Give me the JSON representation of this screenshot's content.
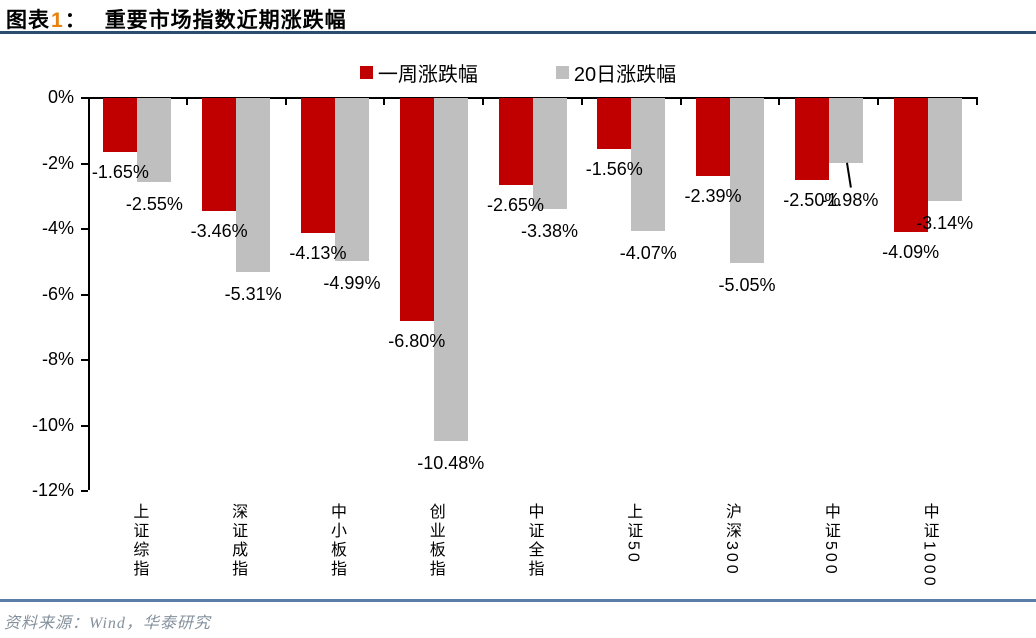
{
  "header": {
    "prefix": "图表",
    "number": "1",
    "colon": "：",
    "title": "重要市场指数近期涨跌幅"
  },
  "legend": [
    {
      "label": "一周涨跌幅",
      "color": "#C00000"
    },
    {
      "label": "20日涨跌幅",
      "color": "#BFBFBF"
    }
  ],
  "footer": {
    "source": "资料来源：Wind，华泰研究"
  },
  "chart_data": {
    "type": "bar",
    "title": "重要市场指数近期涨跌幅",
    "categories": [
      "上证综指",
      "深证成指",
      "中小板指",
      "创业板指",
      "中证全指",
      "上证50",
      "沪深300",
      "中证500",
      "中证1000"
    ],
    "series": [
      {
        "name": "一周涨跌幅",
        "color": "#C00000",
        "values": [
          -1.65,
          -3.46,
          -4.13,
          -6.8,
          -2.65,
          -1.56,
          -2.39,
          -2.5,
          -4.09
        ],
        "labels": [
          "-1.65%",
          "-3.46%",
          "-4.13%",
          "-6.80%",
          "-2.65%",
          "-1.56%",
          "-2.39%",
          "-2.50%",
          "-4.09%"
        ]
      },
      {
        "name": "20日涨跌幅",
        "color": "#BFBFBF",
        "values": [
          -2.55,
          -5.31,
          -4.99,
          -10.48,
          -3.38,
          -4.07,
          -5.05,
          -1.98,
          -3.14
        ],
        "labels": [
          "-2.55%",
          "-5.31%",
          "-4.99%",
          "-10.48%",
          "-3.38%",
          "-4.07%",
          "-5.05%",
          "-1.98%",
          "-3.14%"
        ]
      }
    ],
    "xlabel": "",
    "ylabel": "",
    "ylim": [
      -12,
      0
    ],
    "y_ticks": [
      "0%",
      "-2%",
      "-4%",
      "-6%",
      "-8%",
      "-10%",
      "-12%"
    ],
    "grid": false,
    "legend_position": "top",
    "axis_color": "#000000"
  }
}
